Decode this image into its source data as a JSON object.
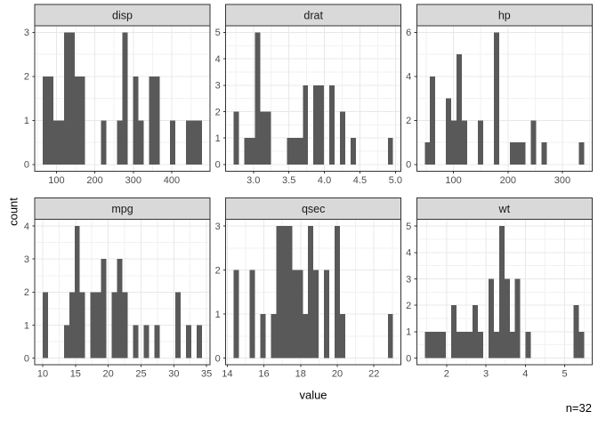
{
  "figure": {
    "y_axis_title": "count",
    "x_axis_title": "value",
    "caption": "n=32"
  },
  "style": {
    "bar_color": "#595959",
    "strip_bg": "#D9D9D9",
    "strip_border": "#333333",
    "strip_text_color": "#1A1A1A",
    "panel_bg": "#FFFFFF",
    "panel_border": "#333333",
    "grid_major": "#E8E8E8",
    "grid_minor": "#F2F2F2",
    "tick_color": "#333333",
    "axis_text_color": "#4D4D4D"
  },
  "chart_data": [
    {
      "type": "bar",
      "facet": "disp",
      "bin_start": 64.18793,
      "bin_width": 13.82414,
      "counts": [
        2,
        2,
        1,
        1,
        3,
        3,
        2,
        2,
        0,
        0,
        0,
        1,
        0,
        0,
        1,
        3,
        0,
        2,
        1,
        0,
        2,
        2,
        0,
        0,
        1,
        0,
        0,
        1,
        1,
        1
      ],
      "xticks": [
        100,
        200,
        300,
        400
      ],
      "xtick_labels": [
        "100",
        "200",
        "300",
        "400"
      ],
      "yticks": [
        0,
        1,
        2,
        3
      ],
      "ymax": 3
    },
    {
      "type": "bar",
      "facet": "drat",
      "bin_start": 2.7225862,
      "bin_width": 0.0748276,
      "counts": [
        2,
        0,
        1,
        1,
        5,
        2,
        2,
        0,
        0,
        0,
        1,
        1,
        1,
        3,
        0,
        3,
        3,
        0,
        3,
        0,
        2,
        0,
        1,
        0,
        0,
        0,
        0,
        0,
        0,
        1
      ],
      "xticks": [
        3.0,
        3.5,
        4.0,
        4.5,
        5.0
      ],
      "xtick_labels": [
        "3.0",
        "3.5",
        "4.0",
        "4.5",
        "5.0"
      ],
      "yticks": [
        0,
        1,
        2,
        3,
        4,
        5
      ],
      "ymax": 5
    },
    {
      "type": "bar",
      "facet": "hp",
      "bin_start": 47.12069,
      "bin_width": 9.7586207,
      "counts": [
        1,
        4,
        0,
        0,
        3,
        2,
        5,
        2,
        0,
        0,
        2,
        0,
        0,
        6,
        0,
        0,
        1,
        1,
        1,
        0,
        2,
        0,
        1,
        0,
        0,
        0,
        0,
        0,
        0,
        1
      ],
      "xticks": [
        100,
        200,
        300
      ],
      "xtick_labels": [
        "100",
        "200",
        "300"
      ],
      "yticks": [
        0,
        2,
        4,
        6
      ],
      "ymax": 6
    },
    {
      "type": "bar",
      "facet": "mpg",
      "bin_start": 9.9948276,
      "bin_width": 0.8103448,
      "counts": [
        2,
        0,
        0,
        0,
        1,
        2,
        4,
        2,
        0,
        2,
        2,
        3,
        0,
        2,
        3,
        2,
        0,
        1,
        0,
        1,
        0,
        1,
        0,
        0,
        0,
        2,
        0,
        1,
        0,
        1
      ],
      "xticks": [
        10,
        15,
        20,
        25,
        30,
        35
      ],
      "xtick_labels": [
        "10",
        "15",
        "20",
        "25",
        "30",
        "35"
      ],
      "yticks": [
        0,
        1,
        2,
        3,
        4
      ],
      "ymax": 4
    },
    {
      "type": "bar",
      "facet": "qsec",
      "bin_start": 14.3551724,
      "bin_width": 0.2896552,
      "counts": [
        2,
        0,
        0,
        2,
        0,
        1,
        0,
        1,
        3,
        3,
        3,
        2,
        2,
        1,
        3,
        2,
        0,
        2,
        0,
        3,
        1,
        0,
        0,
        0,
        0,
        0,
        0,
        0,
        0,
        1
      ],
      "xticks": [
        14,
        16,
        18,
        20,
        22
      ],
      "xtick_labels": [
        "14",
        "16",
        "18",
        "20",
        "22"
      ],
      "yticks": [
        0,
        1,
        2,
        3
      ],
      "ymax": 3
    },
    {
      "type": "bar",
      "facet": "wt",
      "bin_start": 1.445569,
      "bin_width": 0.1348621,
      "counts": [
        1,
        1,
        1,
        1,
        0,
        2,
        1,
        1,
        1,
        2,
        1,
        0,
        3,
        1,
        5,
        3,
        1,
        3,
        0,
        1,
        0,
        0,
        0,
        0,
        0,
        0,
        0,
        0,
        2,
        1
      ],
      "xticks": [
        2,
        3,
        4,
        5
      ],
      "xtick_labels": [
        "2",
        "3",
        "4",
        "5"
      ],
      "yticks": [
        0,
        1,
        2,
        3,
        4,
        5
      ],
      "ymax": 5
    }
  ]
}
